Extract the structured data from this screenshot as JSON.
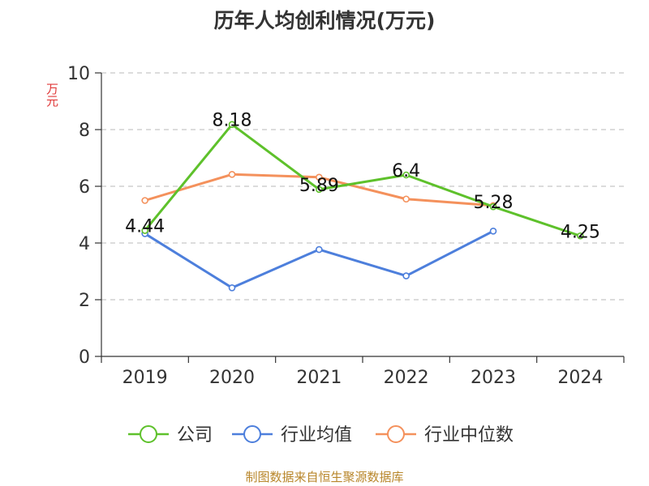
{
  "chart_data": {
    "type": "line",
    "title": "历年人均创利情况(万元)",
    "ylabel": "万元",
    "xlabel": "",
    "categories": [
      "2019",
      "2020",
      "2021",
      "2022",
      "2023",
      "2024"
    ],
    "ylim": [
      0,
      10
    ],
    "yticks": [
      0,
      2,
      4,
      6,
      8,
      10
    ],
    "grid": true,
    "legend_position": "bottom",
    "series": [
      {
        "name": "公司",
        "color": "#5ec12b",
        "values": [
          4.44,
          8.18,
          5.89,
          6.4,
          5.28,
          4.25
        ],
        "labels": [
          "4.44",
          "8.18",
          "5.89",
          "6.4",
          "5.28",
          "4.25"
        ]
      },
      {
        "name": "行业均值",
        "color": "#4d7fdc",
        "values": [
          4.33,
          2.42,
          3.77,
          2.84,
          4.42,
          null
        ]
      },
      {
        "name": "行业中位数",
        "color": "#f4915c",
        "values": [
          5.5,
          6.42,
          6.32,
          5.55,
          5.32,
          null
        ]
      }
    ]
  },
  "source": "制图数据来自恒生聚源数据库"
}
